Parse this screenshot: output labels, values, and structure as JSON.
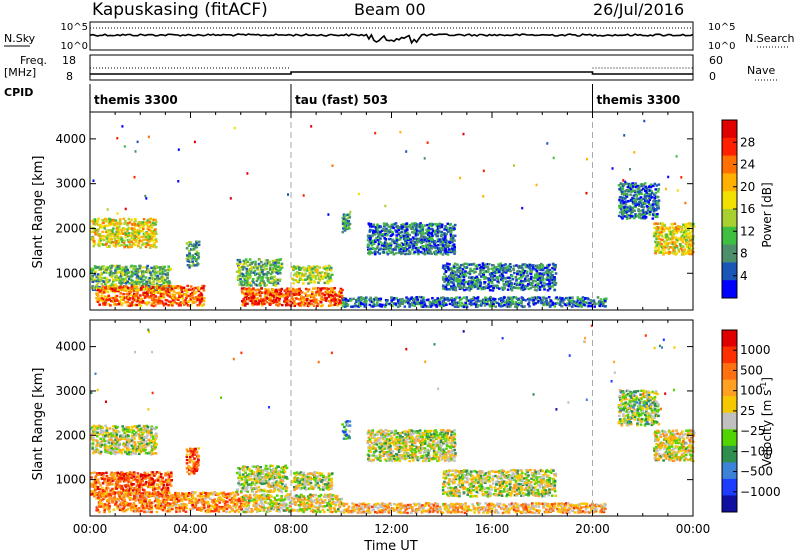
{
  "header": {
    "station": "Kapuskasing (fitACF)",
    "beam": "Beam 00",
    "date": "26/Jul/2016"
  },
  "summary_panels": {
    "nsky_label": "N.Sky",
    "nsky_ticks": [
      "10^5",
      "10^0"
    ],
    "nsearch_label": "N.Search",
    "nsearch_ticks": [
      "10^5",
      "10^0"
    ],
    "freq_label_top": "Freq.",
    "freq_label_unit": "[MHz]",
    "freq_ticks": [
      "18",
      "8"
    ],
    "nave_label": "Nave",
    "nave_ticks": [
      "60",
      "0"
    ],
    "cpid_label": "CPID",
    "cpid_segments": [
      {
        "label": "themis 3300",
        "start": 0,
        "end": 8
      },
      {
        "label": "tau (fast) 503",
        "start": 8,
        "end": 20
      },
      {
        "label": "themis 3300",
        "start": 20,
        "end": 24
      }
    ]
  },
  "chart_data": [
    {
      "type": "heatmap",
      "panel": "power",
      "xlabel": "",
      "ylabel": "Slant Range [km]",
      "xlim": [
        0,
        24
      ],
      "ylim": [
        180,
        4600
      ],
      "yticks": [
        "1000",
        "2000",
        "3000",
        "4000"
      ],
      "colorbar": {
        "label": "Power [dB]",
        "ticks": [
          "4",
          "8",
          "12",
          "16",
          "20",
          "24",
          "28"
        ],
        "colors": [
          "#0000ff",
          "#1a55b8",
          "#4c8f6a",
          "#3fbf3f",
          "#a8d030",
          "#f2e000",
          "#ffb000",
          "#ff7000",
          "#ff2000",
          "#e00000"
        ]
      },
      "echo_regions": [
        {
          "t_start": 0.0,
          "t_end": 2.6,
          "r_start": 1550,
          "r_end": 2200,
          "level": 0.55
        },
        {
          "t_start": 0.0,
          "t_end": 3.2,
          "r_start": 600,
          "r_end": 1150,
          "level": 0.35
        },
        {
          "t_start": 0.2,
          "t_end": 4.5,
          "r_start": 250,
          "r_end": 700,
          "level": 0.75
        },
        {
          "t_start": 3.8,
          "t_end": 4.3,
          "r_start": 1100,
          "r_end": 1700,
          "level": 0.3
        },
        {
          "t_start": 5.8,
          "t_end": 7.6,
          "r_start": 700,
          "r_end": 1300,
          "level": 0.35
        },
        {
          "t_start": 6.0,
          "t_end": 10.0,
          "r_start": 250,
          "r_end": 650,
          "level": 0.8
        },
        {
          "t_start": 8.0,
          "t_end": 9.6,
          "r_start": 750,
          "r_end": 1150,
          "level": 0.45
        },
        {
          "t_start": 10.0,
          "t_end": 10.3,
          "r_start": 1900,
          "r_end": 2300,
          "level": 0.3
        },
        {
          "t_start": 11.0,
          "t_end": 14.5,
          "r_start": 1400,
          "r_end": 2100,
          "level": 0.2
        },
        {
          "t_start": 14.0,
          "t_end": 18.5,
          "r_start": 600,
          "r_end": 1200,
          "level": 0.2
        },
        {
          "t_start": 10.0,
          "t_end": 20.5,
          "r_start": 230,
          "r_end": 450,
          "level": 0.2
        },
        {
          "t_start": 21.0,
          "t_end": 22.6,
          "r_start": 2200,
          "r_end": 3000,
          "level": 0.2
        },
        {
          "t_start": 22.4,
          "t_end": 24.0,
          "r_start": 1400,
          "r_end": 2100,
          "level": 0.55
        }
      ]
    },
    {
      "type": "heatmap",
      "panel": "velocity",
      "xlabel": "Time UT",
      "ylabel": "Slant Range [km]",
      "xlim": [
        0,
        24
      ],
      "ylim": [
        180,
        4600
      ],
      "xticks": [
        "00:00",
        "04:00",
        "08:00",
        "12:00",
        "16:00",
        "20:00",
        "00:00"
      ],
      "yticks": [
        "1000",
        "2000",
        "3000",
        "4000"
      ],
      "colorbar": {
        "label": "Velocity [m s^-1]",
        "ticks": [
          "1000",
          "500",
          "100",
          "25",
          "−25",
          "−100",
          "−500",
          "−1000"
        ],
        "colors": [
          "#1010a0",
          "#1c3cff",
          "#3b82d8",
          "#2f8f4f",
          "#52d400",
          "#c0c0c0",
          "#f5c800",
          "#ffa020",
          "#ff7010",
          "#ff3000",
          "#e00000"
        ]
      },
      "echo_regions": [
        {
          "t_start": 0.0,
          "t_end": 2.6,
          "r_start": 1550,
          "r_end": 2200,
          "level": 0.5
        },
        {
          "t_start": 0.0,
          "t_end": 3.2,
          "r_start": 600,
          "r_end": 1150,
          "level": 0.8
        },
        {
          "t_start": 0.2,
          "t_end": 6.0,
          "r_start": 250,
          "r_end": 700,
          "level": 0.72
        },
        {
          "t_start": 3.8,
          "t_end": 4.3,
          "r_start": 1100,
          "r_end": 1700,
          "level": 0.8
        },
        {
          "t_start": 5.8,
          "t_end": 7.8,
          "r_start": 700,
          "r_end": 1300,
          "level": 0.5
        },
        {
          "t_start": 6.0,
          "t_end": 10.0,
          "r_start": 250,
          "r_end": 650,
          "level": 0.55
        },
        {
          "t_start": 8.0,
          "t_end": 9.6,
          "r_start": 750,
          "r_end": 1150,
          "level": 0.5
        },
        {
          "t_start": 10.0,
          "t_end": 10.3,
          "r_start": 1900,
          "r_end": 2300,
          "level": 0.3
        },
        {
          "t_start": 11.0,
          "t_end": 14.5,
          "r_start": 1400,
          "r_end": 2100,
          "level": 0.5
        },
        {
          "t_start": 14.0,
          "t_end": 18.5,
          "r_start": 600,
          "r_end": 1200,
          "level": 0.5
        },
        {
          "t_start": 10.0,
          "t_end": 20.5,
          "r_start": 230,
          "r_end": 450,
          "level": 0.65
        },
        {
          "t_start": 21.0,
          "t_end": 22.6,
          "r_start": 2200,
          "r_end": 3000,
          "level": 0.45
        },
        {
          "t_start": 22.4,
          "t_end": 24.0,
          "r_start": 1400,
          "r_end": 2100,
          "level": 0.55
        }
      ]
    }
  ]
}
